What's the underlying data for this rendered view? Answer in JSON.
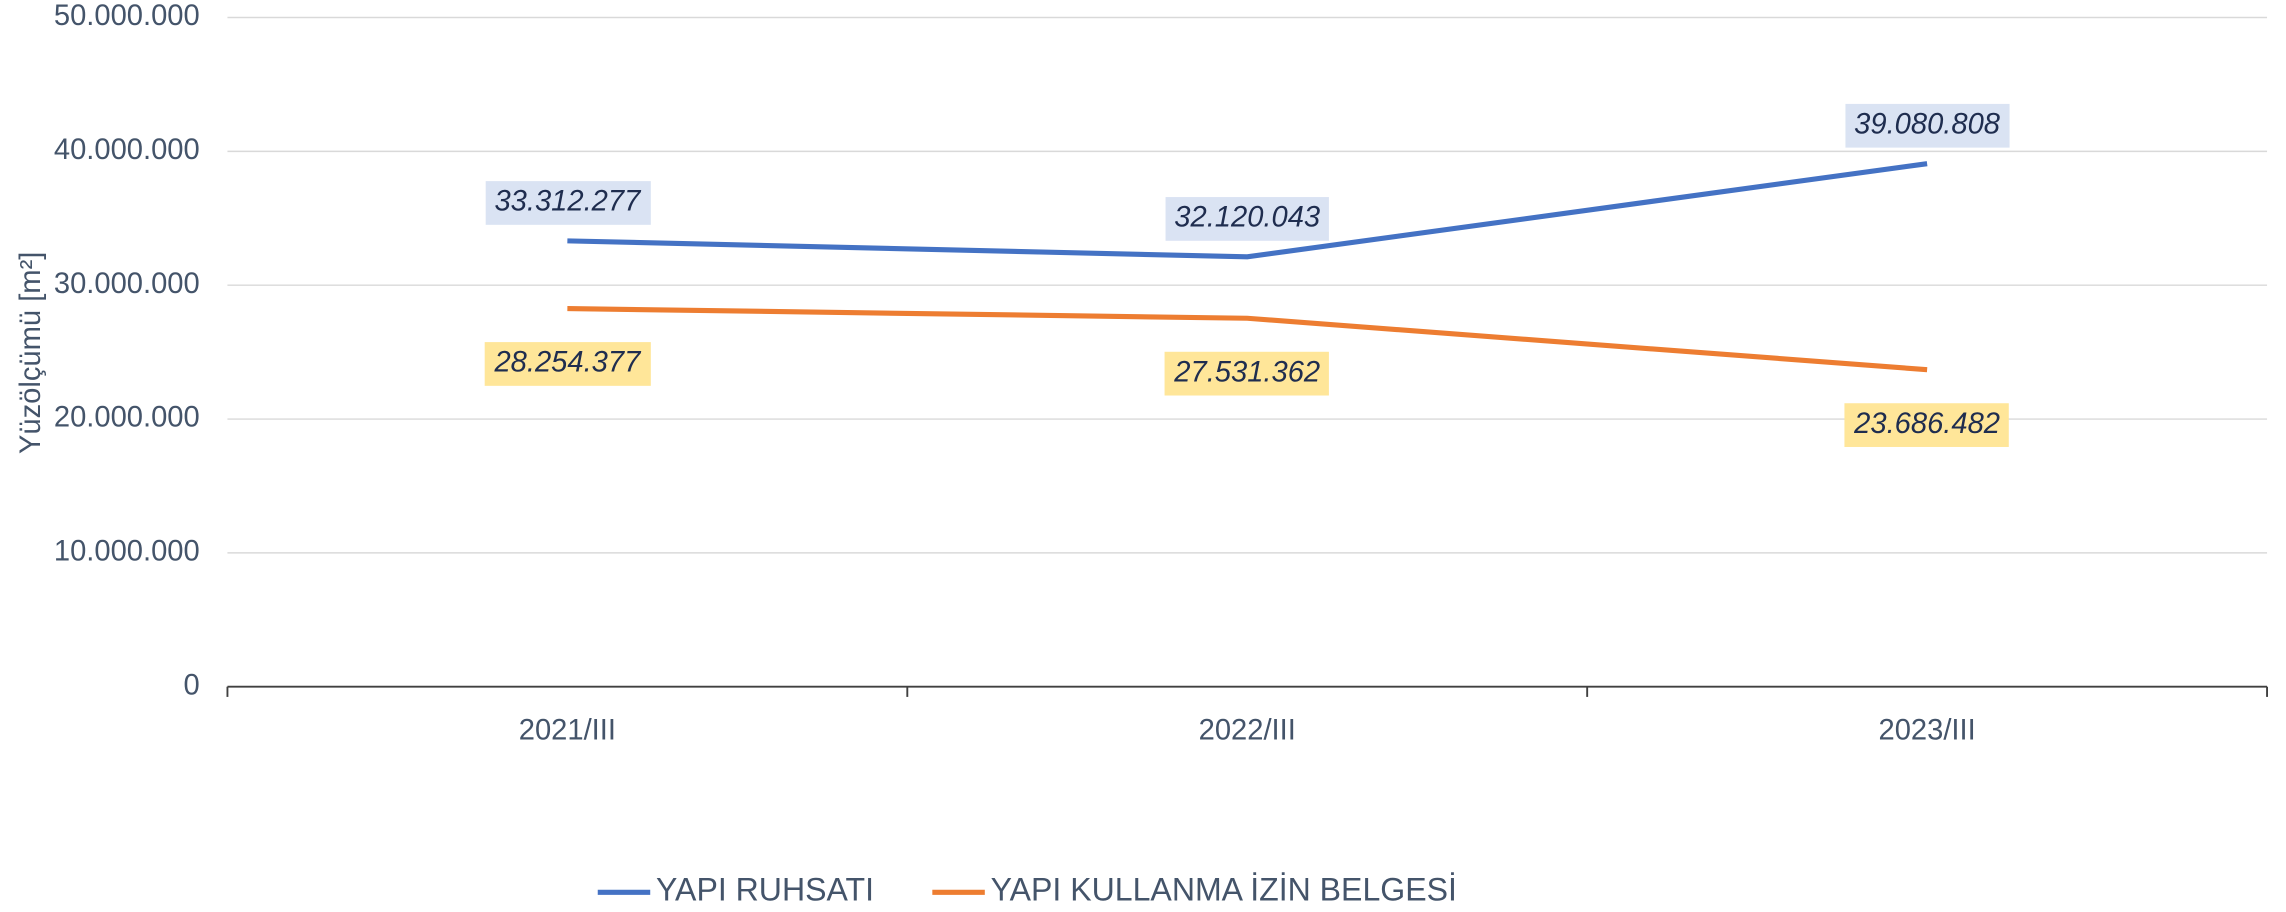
{
  "chart_data": {
    "type": "line",
    "y_label": "Yüzölçümü [m²]",
    "categories": [
      "2021/III",
      "2022/III",
      "2023/III"
    ],
    "series": [
      {
        "name": "YAPI RUHSATI",
        "color": "#4472c4",
        "label_bg": "#dae3f3",
        "values": [
          33312277,
          32120043,
          39080808
        ],
        "value_labels": [
          "33.312.277",
          "32.120.043",
          "39.080.808"
        ]
      },
      {
        "name": "YAPI KULLANMA İZİN BELGESİ",
        "color": "#ed7d31",
        "label_bg": "#ffe699",
        "values": [
          28254377,
          27531362,
          23686482
        ],
        "value_labels": [
          "28.254.377",
          "27.531.362",
          "23.686.482"
        ]
      }
    ],
    "ylim": [
      0,
      50000000
    ],
    "yticks": [
      0,
      {
        "value": 10000000,
        "label": "10.000.000"
      },
      {
        "value": 20000000,
        "label": "20.000.000"
      },
      {
        "value": 30000000,
        "label": "30.000.000"
      },
      {
        "value": 40000000,
        "label": "40.000.000"
      },
      {
        "value": 50000000,
        "label": "50.000.000"
      }
    ],
    "grid": true,
    "legend": "bottom"
  }
}
